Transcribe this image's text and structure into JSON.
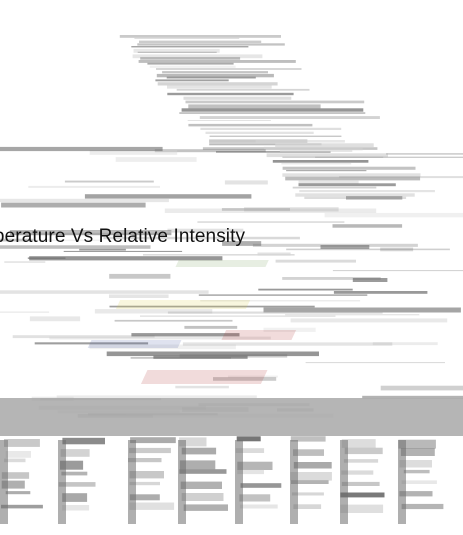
{
  "caption": "mperature Vs Relative Intensity",
  "palette": {
    "background": "#ffffff",
    "stroke_light": "#d4d4d4",
    "stroke_mid": "#a8a8a8",
    "stroke_dark": "#6e6e6e",
    "accent_red": "#b23a3a",
    "accent_blue": "#4b5fa8",
    "accent_yellow": "#d9cf4a",
    "accent_green": "#7aa35c"
  }
}
